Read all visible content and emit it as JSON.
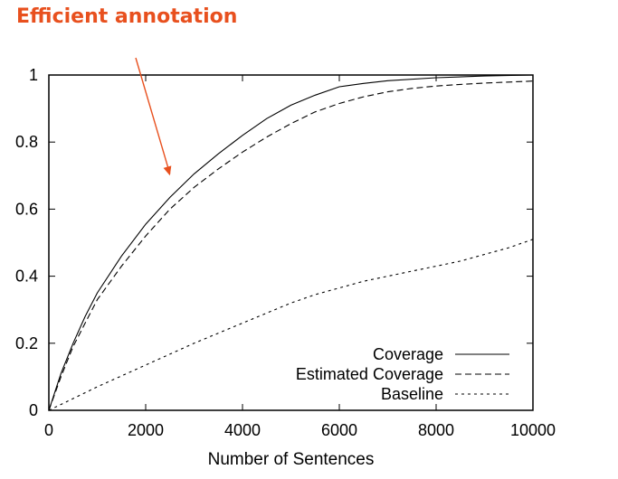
{
  "annotation": {
    "text": "Efficient annotation",
    "color": "#e8501e",
    "target": {
      "x": 2500,
      "y": 0.7
    }
  },
  "chart_data": {
    "type": "line",
    "title": "",
    "xlabel": "Number of Sentences",
    "ylabel": "",
    "xlim": [
      0,
      10000
    ],
    "ylim": [
      0,
      1
    ],
    "xticks": [
      0,
      2000,
      4000,
      6000,
      8000,
      10000
    ],
    "yticks": [
      0,
      0.2,
      0.4,
      0.6,
      0.8,
      1
    ],
    "ytick_labels": [
      "0",
      "0.2",
      "0.4",
      "0.6",
      "0.8",
      "1"
    ],
    "grid": false,
    "legend_position": "bottom-right",
    "series": [
      {
        "name": "Coverage",
        "style": "solid",
        "color": "#000000",
        "x": [
          0,
          250,
          500,
          750,
          1000,
          1500,
          2000,
          2500,
          3000,
          3500,
          4000,
          4500,
          5000,
          5500,
          6000,
          6500,
          7000,
          8000,
          9000,
          10000
        ],
        "y": [
          0,
          0.11,
          0.2,
          0.28,
          0.35,
          0.46,
          0.555,
          0.635,
          0.705,
          0.765,
          0.82,
          0.87,
          0.91,
          0.94,
          0.965,
          0.975,
          0.983,
          0.992,
          0.997,
          1.0
        ]
      },
      {
        "name": "Estimated Coverage",
        "style": "dashed",
        "color": "#000000",
        "x": [
          0,
          250,
          500,
          750,
          1000,
          1500,
          2000,
          2500,
          3000,
          3500,
          4000,
          4500,
          5000,
          5500,
          6000,
          6500,
          7000,
          7500,
          8000,
          8500,
          9000,
          9500,
          10000
        ],
        "y": [
          0,
          0.1,
          0.19,
          0.26,
          0.33,
          0.43,
          0.52,
          0.6,
          0.665,
          0.72,
          0.77,
          0.815,
          0.855,
          0.89,
          0.915,
          0.935,
          0.95,
          0.96,
          0.967,
          0.972,
          0.976,
          0.979,
          0.982
        ]
      },
      {
        "name": "Baseline",
        "style": "dotted",
        "color": "#000000",
        "x": [
          0,
          1000,
          2000,
          3000,
          4000,
          5000,
          5500,
          6000,
          6500,
          7000,
          7500,
          8000,
          8500,
          9000,
          9500,
          10000
        ],
        "y": [
          0,
          0.07,
          0.135,
          0.2,
          0.26,
          0.32,
          0.345,
          0.365,
          0.385,
          0.4,
          0.415,
          0.43,
          0.445,
          0.465,
          0.485,
          0.51
        ]
      }
    ]
  }
}
